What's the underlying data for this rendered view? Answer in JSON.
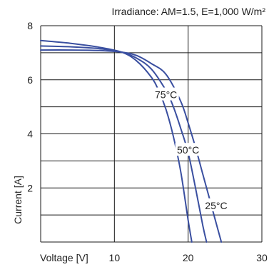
{
  "colors": {
    "curve": "#3a4fa0",
    "grid": "#1a1a1a",
    "text": "#222222"
  },
  "chart_data": {
    "type": "line",
    "title": "Irradiance: AM=1.5, E=1,000 W/m²",
    "xlabel": "Voltage [V]",
    "ylabel": "Current [A]",
    "xlim": [
      0,
      30
    ],
    "ylim": [
      0,
      8
    ],
    "xticks": [
      10,
      20,
      30
    ],
    "yticks": [
      2,
      4,
      6,
      8
    ],
    "grid": true,
    "series": [
      {
        "name": "25°C",
        "x": [
          0,
          4,
          8,
          11,
          13,
          15,
          17,
          19,
          20,
          21,
          22,
          23,
          24,
          24.5
        ],
        "y": [
          7.1,
          7.1,
          7.08,
          7.02,
          6.9,
          6.6,
          6.2,
          5.2,
          4.4,
          3.5,
          2.5,
          1.5,
          0.5,
          0
        ]
      },
      {
        "name": "50°C",
        "x": [
          0,
          4,
          8,
          11,
          13,
          15,
          17,
          18,
          19,
          20,
          21,
          22,
          22.5
        ],
        "y": [
          7.25,
          7.22,
          7.15,
          7.02,
          6.8,
          6.4,
          5.6,
          5.0,
          4.2,
          3.3,
          2.0,
          0.6,
          0
        ]
      },
      {
        "name": "75°C",
        "x": [
          0,
          4,
          8,
          11,
          13,
          15,
          16,
          17,
          18,
          19,
          20,
          20.5
        ],
        "y": [
          7.45,
          7.35,
          7.2,
          7.02,
          6.7,
          6.1,
          5.6,
          4.9,
          3.9,
          2.6,
          0.8,
          0
        ]
      }
    ],
    "annotations": [
      {
        "text": "75°C",
        "x": 17,
        "y": 5.45
      },
      {
        "text": "50°C",
        "x": 20,
        "y": 3.4
      },
      {
        "text": "25°C",
        "x": 23.8,
        "y": 1.35
      }
    ]
  }
}
